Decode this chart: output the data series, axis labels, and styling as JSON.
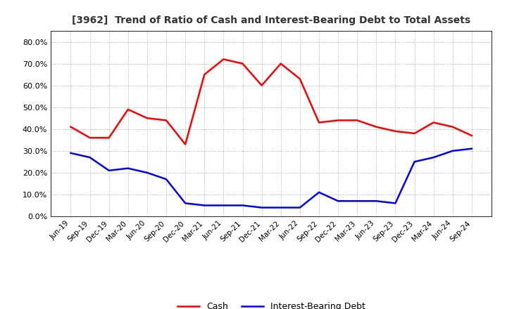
{
  "title": "[3962]  Trend of Ratio of Cash and Interest-Bearing Debt to Total Assets",
  "x_labels": [
    "Jun-19",
    "Sep-19",
    "Dec-19",
    "Mar-20",
    "Jun-20",
    "Sep-20",
    "Dec-20",
    "Mar-21",
    "Jun-21",
    "Sep-21",
    "Dec-21",
    "Mar-22",
    "Jun-22",
    "Sep-22",
    "Dec-22",
    "Mar-23",
    "Jun-23",
    "Sep-23",
    "Dec-23",
    "Mar-24",
    "Jun-24",
    "Sep-24"
  ],
  "cash": [
    0.41,
    0.36,
    0.36,
    0.49,
    0.45,
    0.44,
    0.33,
    0.65,
    0.72,
    0.7,
    0.6,
    0.7,
    0.63,
    0.43,
    0.44,
    0.44,
    0.41,
    0.39,
    0.38,
    0.43,
    0.41,
    0.37
  ],
  "debt": [
    0.29,
    0.27,
    0.21,
    0.22,
    0.2,
    0.17,
    0.06,
    0.05,
    0.05,
    0.05,
    0.04,
    0.04,
    0.04,
    0.11,
    0.07,
    0.07,
    0.07,
    0.06,
    0.25,
    0.27,
    0.3,
    0.31
  ],
  "cash_color": "#FF0000",
  "debt_color": "#0000FF",
  "ylim": [
    0.0,
    0.85
  ],
  "yticks": [
    0.0,
    0.1,
    0.2,
    0.3,
    0.4,
    0.5,
    0.6,
    0.7,
    0.8
  ],
  "background_color": "#FFFFFF",
  "plot_bg_color": "#FFFFFF",
  "grid_color": "#999999",
  "legend_cash": "Cash",
  "legend_debt": "Interest-Bearing Debt",
  "title_color": "#333333"
}
